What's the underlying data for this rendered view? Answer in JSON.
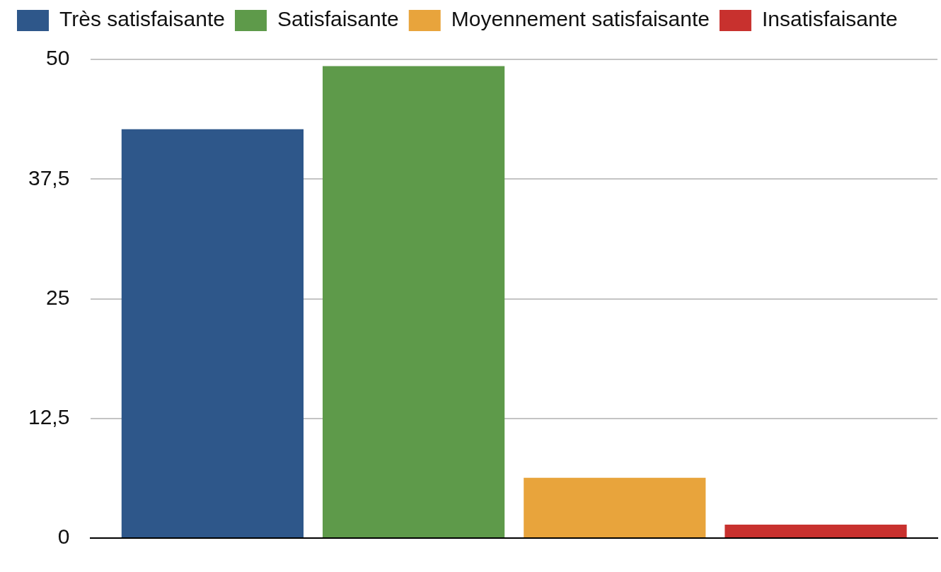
{
  "chart_data": {
    "type": "bar",
    "categories": [
      null
    ],
    "series": [
      {
        "name": "Très satisfaisante",
        "color": "#2e578a",
        "values": [
          42.7
        ]
      },
      {
        "name": "Satisfaisante",
        "color": "#5e9a4a",
        "values": [
          49.3
        ]
      },
      {
        "name": "Moyennement satisfaisante",
        "color": "#e8a43c",
        "values": [
          6.3
        ]
      },
      {
        "name": "Insatisfaisante",
        "color": "#c8312e",
        "values": [
          1.4
        ]
      }
    ],
    "ylim": [
      0,
      50
    ],
    "yticks": [
      0,
      {
        "value": 12.5,
        "label": "12,5"
      },
      25,
      {
        "value": 37.5,
        "label": "37,5"
      },
      50
    ],
    "grid": "y",
    "legend": "top left"
  }
}
